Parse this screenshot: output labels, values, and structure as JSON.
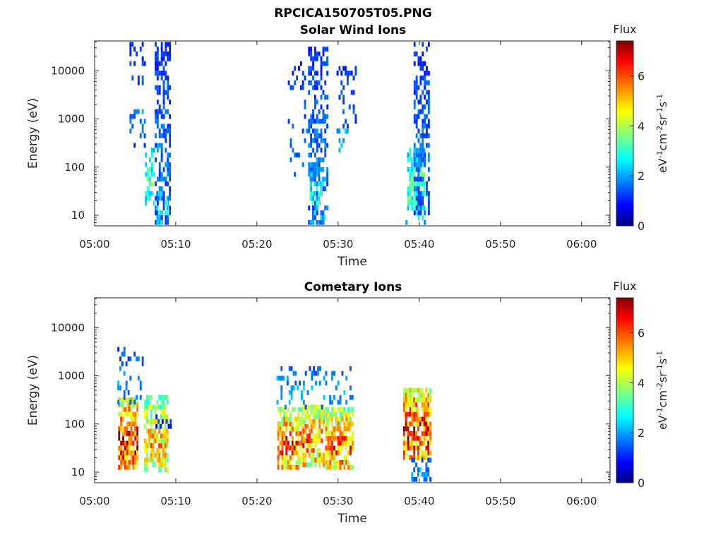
{
  "chart_data": {
    "type": "heatmap",
    "title": "RPCICA150705T05.PNG",
    "flux_range": [
      0,
      7.4
    ],
    "colorbar_ticks": [
      0,
      2,
      4,
      6
    ],
    "colorbar_label": "Flux",
    "colorbar_unit": "eV-1cm-2sr-1s-1",
    "colormap": [
      "#000080",
      "#0000ff",
      "#00ffff",
      "#ffff00",
      "#ff0000",
      "#800000"
    ],
    "panels": [
      {
        "title": "Solar Wind Ions",
        "xlabel": "Time",
        "ylabel": "Energy (eV)",
        "x_ticks": [
          "05:00",
          "05:10",
          "05:20",
          "05:30",
          "05:40",
          "05:50",
          "06:00"
        ],
        "y_ticks": [
          "10",
          "100",
          "1000",
          "10000"
        ],
        "xlim_minutes": [
          0,
          63.5
        ],
        "ylim_log10": [
          0.78,
          4.62
        ],
        "bursts": [
          {
            "t0": 4.3,
            "t1": 6.2,
            "e_lo": 2.4,
            "e_hi": 4.5,
            "peak": 1.8,
            "dens": 0.16,
            "seed": 11
          },
          {
            "t0": 6.2,
            "t1": 7.3,
            "e_lo": 1.2,
            "e_hi": 2.4,
            "peak": 3.3,
            "dens": 0.45,
            "seed": 12
          },
          {
            "t0": 7.4,
            "t1": 9.4,
            "e_lo": 0.8,
            "e_hi": 4.6,
            "peak": 1.7,
            "dens": 0.5,
            "seed": 13
          },
          {
            "t0": 7.6,
            "t1": 9.0,
            "e_lo": 0.8,
            "e_hi": 1.5,
            "peak": 3.0,
            "dens": 0.45,
            "seed": 14
          },
          {
            "t0": 23.8,
            "t1": 26.3,
            "e_lo": 1.8,
            "e_hi": 4.2,
            "peak": 1.7,
            "dens": 0.13,
            "seed": 21
          },
          {
            "t0": 26.3,
            "t1": 28.6,
            "e_lo": 0.8,
            "e_hi": 4.45,
            "peak": 1.8,
            "dens": 0.45,
            "seed": 22
          },
          {
            "t0": 26.5,
            "t1": 28.5,
            "e_lo": 0.8,
            "e_hi": 2.0,
            "peak": 2.9,
            "dens": 0.45,
            "seed": 23
          },
          {
            "t0": 29.8,
            "t1": 32.2,
            "e_lo": 2.8,
            "e_hi": 4.05,
            "peak": 1.6,
            "dens": 0.2,
            "seed": 24
          },
          {
            "t0": 29.8,
            "t1": 31.5,
            "e_lo": 2.3,
            "e_hi": 2.8,
            "peak": 2.6,
            "dens": 0.2,
            "seed": 25
          },
          {
            "t0": 38.5,
            "t1": 40.6,
            "e_lo": 1.1,
            "e_hi": 2.35,
            "peak": 3.6,
            "dens": 0.72,
            "seed": 31
          },
          {
            "t0": 39.3,
            "t1": 41.3,
            "e_lo": 1.0,
            "e_hi": 4.55,
            "peak": 1.7,
            "dens": 0.5,
            "seed": 32
          },
          {
            "t0": 38.3,
            "t1": 41.3,
            "e_lo": 0.8,
            "e_hi": 1.1,
            "peak": 2.8,
            "dens": 0.25,
            "seed": 33
          }
        ]
      },
      {
        "title": "Cometary Ions",
        "xlabel": "Time",
        "ylabel": "Energy (eV)",
        "x_ticks": [
          "05:00",
          "05:10",
          "05:20",
          "05:30",
          "05:40",
          "05:50",
          "06:00"
        ],
        "y_ticks": [
          "10",
          "100",
          "1000",
          "10000"
        ],
        "xlim_minutes": [
          0,
          63.5
        ],
        "ylim_log10": [
          0.78,
          4.62
        ],
        "bursts": [
          {
            "t0": 2.9,
            "t1": 5.4,
            "e_lo": 1.05,
            "e_hi": 2.55,
            "peak": 6.7,
            "dens": 0.8,
            "seed": 41
          },
          {
            "t0": 2.8,
            "t1": 6.0,
            "e_lo": 2.3,
            "e_hi": 3.6,
            "peak": 2.0,
            "dens": 0.22,
            "seed": 42
          },
          {
            "t0": 6.1,
            "t1": 8.9,
            "e_lo": 1.0,
            "e_hi": 2.55,
            "peak": 5.3,
            "dens": 0.7,
            "seed": 43
          },
          {
            "t0": 7.5,
            "t1": 9.3,
            "e_lo": 1.9,
            "e_hi": 2.2,
            "peak": 1.2,
            "dens": 0.35,
            "seed": 44
          },
          {
            "t0": 22.5,
            "t1": 25.6,
            "e_lo": 1.05,
            "e_hi": 2.3,
            "peak": 6.3,
            "dens": 0.75,
            "seed": 51
          },
          {
            "t0": 25.6,
            "t1": 28.3,
            "e_lo": 1.1,
            "e_hi": 2.4,
            "peak": 5.9,
            "dens": 0.75,
            "seed": 52
          },
          {
            "t0": 28.4,
            "t1": 31.8,
            "e_lo": 1.05,
            "e_hi": 2.3,
            "peak": 6.1,
            "dens": 0.75,
            "seed": 53
          },
          {
            "t0": 22.4,
            "t1": 31.9,
            "e_lo": 2.3,
            "e_hi": 3.2,
            "peak": 2.2,
            "dens": 0.22,
            "seed": 54
          },
          {
            "t0": 38.0,
            "t1": 41.3,
            "e_lo": 1.25,
            "e_hi": 2.75,
            "peak": 6.6,
            "dens": 0.8,
            "seed": 61
          },
          {
            "t0": 39.0,
            "t1": 41.3,
            "e_lo": 0.8,
            "e_hi": 1.3,
            "peak": 2.0,
            "dens": 0.4,
            "seed": 62
          }
        ]
      }
    ]
  }
}
